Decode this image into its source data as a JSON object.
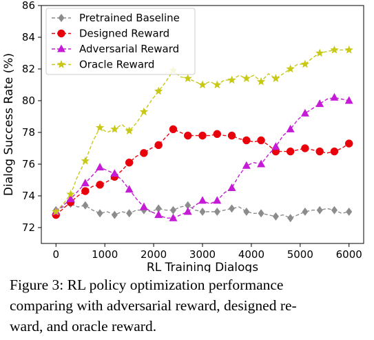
{
  "chart_data": {
    "type": "line",
    "title": "",
    "xlabel": "RL Training Dialogs",
    "ylabel": "Dialog Success Rate (%)",
    "xlim": [
      -300,
      6300
    ],
    "ylim": [
      71,
      86
    ],
    "xticks": [
      0,
      1000,
      2000,
      3000,
      4000,
      5000,
      6000
    ],
    "yticks": [
      72,
      74,
      76,
      78,
      80,
      82,
      84,
      86
    ],
    "grid": false,
    "legend": "top-left",
    "x": [
      0,
      300,
      600,
      900,
      1200,
      1500,
      1800,
      2100,
      2400,
      2700,
      3000,
      3300,
      3600,
      3900,
      4200,
      4500,
      4800,
      5100,
      5400,
      5700,
      6000
    ],
    "series": [
      {
        "name": "Pretrained Baseline",
        "color": "#8c8c8c",
        "marker": "diamond",
        "marker_x": [
          0,
          300,
          600,
          900,
          1200,
          1500,
          1800,
          2100,
          2400,
          2700,
          3000,
          3300,
          3600,
          3900,
          4200,
          4500,
          4800,
          5100,
          5400,
          5700,
          6000
        ],
        "x": [
          0,
          150,
          300,
          450,
          600,
          750,
          900,
          1050,
          1200,
          1350,
          1500,
          1650,
          1800,
          1950,
          2100,
          2250,
          2400,
          2550,
          2700,
          2850,
          3000,
          3150,
          3300,
          3450,
          3600,
          3750,
          3900,
          4050,
          4200,
          4350,
          4500,
          4650,
          4800,
          4950,
          5100,
          5250,
          5400,
          5550,
          5700,
          5850,
          6000
        ],
        "values": [
          73.1,
          73.3,
          73.5,
          73.3,
          73.4,
          73.1,
          72.9,
          73.0,
          72.8,
          73.0,
          72.9,
          73.1,
          73.1,
          73.0,
          73.2,
          73.1,
          73.1,
          73.3,
          73.4,
          73.1,
          73.0,
          73.0,
          73.0,
          73.1,
          73.2,
          73.3,
          73.0,
          72.9,
          72.9,
          72.8,
          72.7,
          72.8,
          72.6,
          72.8,
          73.0,
          73.1,
          73.1,
          73.2,
          73.1,
          72.9,
          73.0
        ]
      },
      {
        "name": "Designed Reward",
        "color": "#e8000b",
        "marker": "circle",
        "marker_x": [
          0,
          300,
          600,
          900,
          1200,
          1500,
          1800,
          2100,
          2400,
          2700,
          3000,
          3300,
          3600,
          3900,
          4200,
          4500,
          4800,
          5100,
          5400,
          5700,
          6000
        ],
        "x": [
          0,
          150,
          300,
          450,
          600,
          750,
          900,
          1050,
          1200,
          1350,
          1500,
          1650,
          1800,
          1950,
          2100,
          2250,
          2400,
          2550,
          2700,
          2850,
          3000,
          3150,
          3300,
          3450,
          3600,
          3750,
          3900,
          4050,
          4200,
          4350,
          4500,
          4650,
          4800,
          4950,
          5100,
          5250,
          5400,
          5550,
          5700,
          5850,
          6000
        ],
        "values": [
          72.8,
          73.2,
          73.6,
          74.0,
          74.3,
          74.6,
          74.7,
          74.9,
          75.2,
          75.6,
          76.1,
          76.5,
          76.7,
          77.0,
          77.2,
          77.7,
          78.2,
          78.0,
          77.8,
          77.8,
          77.8,
          77.8,
          77.9,
          77.8,
          77.8,
          77.6,
          77.5,
          77.4,
          77.5,
          77.2,
          76.8,
          76.8,
          76.8,
          76.9,
          77.0,
          76.9,
          76.8,
          76.7,
          76.8,
          77.0,
          77.3
        ]
      },
      {
        "name": "Adversarial Reward",
        "color": "#c51bd6",
        "marker": "triangle",
        "marker_x": [
          0,
          300,
          600,
          900,
          1200,
          1500,
          1800,
          2100,
          2400,
          2700,
          3000,
          3300,
          3600,
          3900,
          4200,
          4500,
          4800,
          5100,
          5400,
          5700,
          6000
        ],
        "x": [
          0,
          150,
          300,
          450,
          600,
          750,
          900,
          1050,
          1200,
          1350,
          1500,
          1650,
          1800,
          1950,
          2100,
          2250,
          2400,
          2550,
          2700,
          2850,
          3000,
          3150,
          3300,
          3450,
          3600,
          3750,
          3900,
          4050,
          4200,
          4350,
          4500,
          4650,
          4800,
          4950,
          5100,
          5250,
          5400,
          5550,
          5700,
          5850,
          6000
        ],
        "values": [
          73.0,
          73.4,
          73.8,
          74.3,
          74.8,
          75.3,
          75.8,
          75.6,
          75.4,
          75.0,
          74.4,
          73.8,
          73.3,
          73.0,
          72.8,
          72.6,
          72.6,
          72.8,
          73.0,
          73.4,
          73.7,
          73.5,
          73.7,
          74.2,
          74.5,
          75.3,
          75.9,
          76.1,
          76.0,
          76.6,
          77.1,
          77.8,
          78.2,
          78.8,
          79.2,
          79.5,
          79.8,
          80.1,
          80.2,
          80.1,
          80.0
        ]
      },
      {
        "name": "Oracle Reward",
        "color": "#c8c816",
        "marker": "star",
        "marker_x": [
          0,
          300,
          600,
          900,
          1200,
          1500,
          1800,
          2100,
          2400,
          2700,
          3000,
          3300,
          3600,
          3900,
          4200,
          4500,
          4800,
          5100,
          5400,
          5700,
          6000
        ],
        "x": [
          0,
          150,
          300,
          450,
          600,
          750,
          900,
          1050,
          1200,
          1350,
          1500,
          1650,
          1800,
          1950,
          2100,
          2250,
          2400,
          2550,
          2700,
          2850,
          3000,
          3150,
          3300,
          3450,
          3600,
          3750,
          3900,
          4050,
          4200,
          4350,
          4500,
          4650,
          4800,
          4950,
          5100,
          5250,
          5400,
          5550,
          5700,
          5850,
          6000
        ],
        "values": [
          73.0,
          73.5,
          74.1,
          75.3,
          76.2,
          77.4,
          78.3,
          78.0,
          78.2,
          78.5,
          78.1,
          78.6,
          79.3,
          80.0,
          80.6,
          81.2,
          81.9,
          81.5,
          81.4,
          81.2,
          81.0,
          81.2,
          81.0,
          81.3,
          81.3,
          81.6,
          81.4,
          81.6,
          81.2,
          81.7,
          81.4,
          81.7,
          82.0,
          82.3,
          82.3,
          82.7,
          83.0,
          83.1,
          83.2,
          83.2,
          83.2
        ]
      }
    ]
  },
  "caption": {
    "line1": "Figure 3:   RL policy optimization performance",
    "line2": "comparing with adversarial reward, designed re-",
    "line3": "ward, and oracle reward."
  }
}
